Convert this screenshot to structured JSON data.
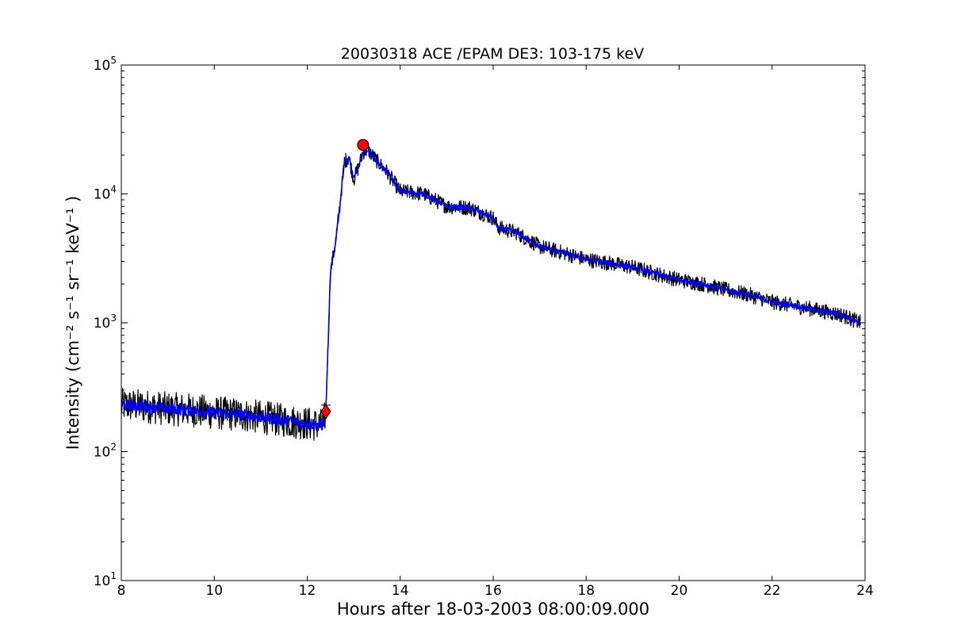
{
  "chart_data": {
    "type": "line",
    "title": "20030318 ACE /EPAM DE3: 103-175 keV",
    "xlabel": "Hours after 18-03-2003 08:00:09.000",
    "ylabel": "Intensity (cm⁻² s⁻¹ sr⁻¹ keV⁻¹ )",
    "xlim": [
      8,
      24
    ],
    "ylim": [
      10,
      100000
    ],
    "yscale": "log",
    "grid": false,
    "x_ticks": [
      "8",
      "10",
      "12",
      "14",
      "16",
      "18",
      "20",
      "22",
      "24"
    ],
    "y_ticks": [
      {
        "base": "10",
        "exp": "1"
      },
      {
        "base": "10",
        "exp": "2"
      },
      {
        "base": "10",
        "exp": "3"
      },
      {
        "base": "10",
        "exp": "4"
      },
      {
        "base": "10",
        "exp": "5"
      }
    ],
    "series": [
      {
        "role": "raw",
        "color": "#000000",
        "x": [
          8.0,
          8.5,
          9.0,
          9.5,
          10.0,
          10.5,
          11.0,
          11.5,
          12.0,
          12.35,
          12.4,
          12.45,
          12.5,
          12.6,
          12.7,
          12.8,
          12.9,
          13.0,
          13.1,
          13.2,
          13.3,
          13.5,
          13.7,
          14.0,
          14.5,
          15.0,
          15.5,
          16.0,
          16.1,
          16.5,
          17.0,
          17.5,
          18.0,
          18.5,
          19.0,
          19.5,
          20.0,
          20.5,
          21.0,
          21.5,
          22.0,
          22.5,
          23.0,
          23.5,
          23.9
        ],
        "y": [
          230,
          225,
          215,
          210,
          200,
          195,
          185,
          175,
          165,
          160,
          210,
          700,
          2500,
          4000,
          8000,
          18000,
          19000,
          13000,
          16000,
          21000,
          22000,
          18000,
          15000,
          10500,
          10000,
          8000,
          7800,
          6500,
          5500,
          5000,
          3900,
          3500,
          3100,
          2900,
          2700,
          2400,
          2150,
          2000,
          1800,
          1650,
          1450,
          1350,
          1250,
          1150,
          1000
        ],
        "noise": 0.12
      },
      {
        "role": "smoothed",
        "color": "#0000ff",
        "x": [
          8.0,
          8.5,
          9.0,
          9.5,
          10.0,
          10.5,
          11.0,
          11.5,
          12.0,
          12.35,
          12.4,
          12.45,
          12.5,
          12.6,
          12.7,
          12.8,
          12.9,
          13.0,
          13.1,
          13.2,
          13.3,
          13.5,
          13.7,
          14.0,
          14.5,
          15.0,
          15.5,
          16.0,
          16.1,
          16.5,
          17.0,
          17.5,
          18.0,
          18.5,
          19.0,
          19.5,
          20.0,
          20.5,
          21.0,
          21.5,
          22.0,
          22.5,
          23.0,
          23.5,
          23.9
        ],
        "y": [
          230,
          225,
          215,
          210,
          200,
          195,
          185,
          175,
          165,
          160,
          210,
          700,
          2500,
          4000,
          8000,
          18000,
          19000,
          13000,
          16000,
          21000,
          22000,
          18000,
          15000,
          10500,
          10000,
          8000,
          7800,
          6500,
          5500,
          5000,
          3900,
          3500,
          3100,
          2900,
          2700,
          2400,
          2150,
          2000,
          1800,
          1650,
          1450,
          1350,
          1250,
          1150,
          1000
        ],
        "noise": 0.04
      }
    ],
    "markers": [
      {
        "name": "onset",
        "shape": "diamond",
        "x": 12.4,
        "y": 205,
        "color": "#ff0000"
      },
      {
        "name": "peak",
        "shape": "circle",
        "x": 13.2,
        "y": 24000,
        "color": "#ff0000"
      }
    ]
  }
}
